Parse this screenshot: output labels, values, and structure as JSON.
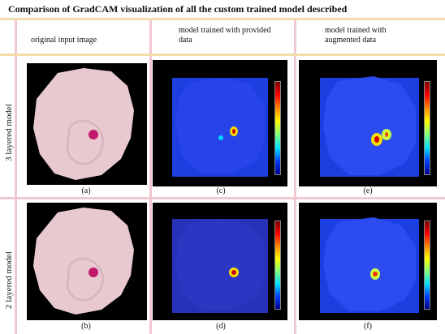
{
  "title": "Comparison of GradCAM visualization of all the custom trained model described",
  "column_headers": [
    "original  input image",
    "model trained with provided data",
    "model trained with augmented data"
  ],
  "row_labels": [
    "3 layered model",
    "2 layered model"
  ],
  "captions": [
    "(a)",
    "(c)",
    "(e)",
    "(b)",
    "(d)",
    "(f)"
  ],
  "colors": {
    "grid_line": "#f2c8d0",
    "row_divider": "#f3dcab",
    "cell_fill": "#e8c9cf",
    "parasite": "#c2186b",
    "heatmap_background": "#1e3fe0"
  }
}
